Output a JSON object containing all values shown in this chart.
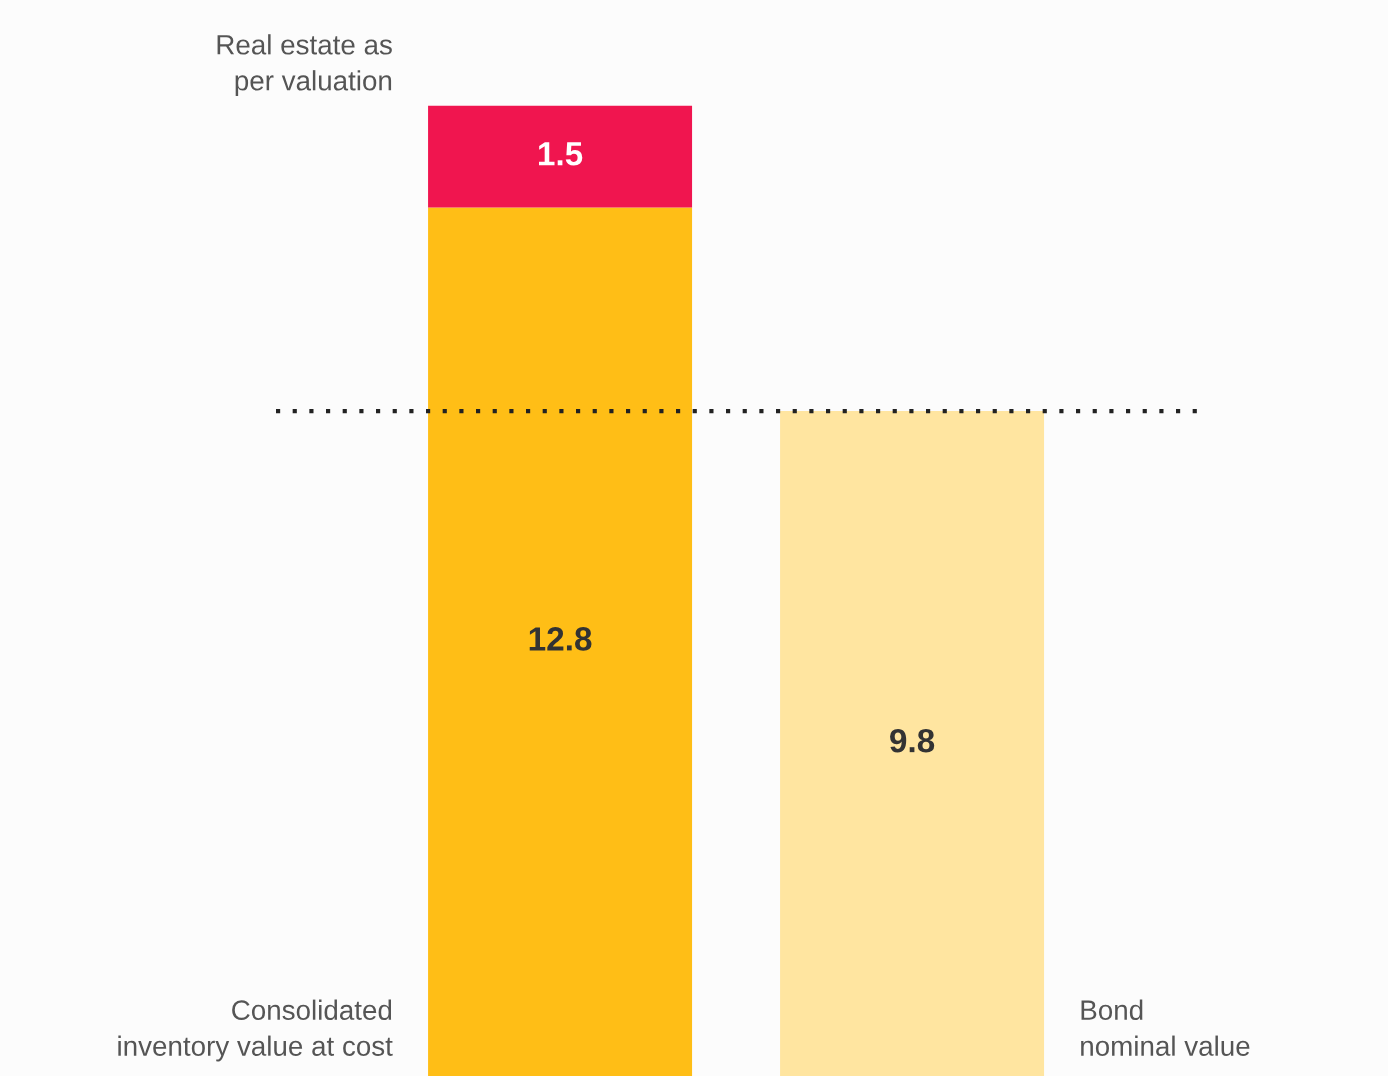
{
  "chart_data": {
    "type": "bar",
    "stacked": true,
    "categories": [
      null,
      null
    ],
    "series": [
      {
        "name": "Consolidated\ninventory value at cost",
        "color": "#ffbe16",
        "values": [
          12.8,
          null
        ]
      },
      {
        "name": "Real estate as\nper valuation",
        "color": "#f0154f",
        "values": [
          1.5,
          null
        ]
      },
      {
        "name": "Bond\nnominal value",
        "color": "#ffe5a0",
        "values": [
          null,
          9.8
        ]
      }
    ],
    "ref_lines": [
      {
        "axis": "y",
        "value": 9.8,
        "label": null,
        "color": "#222222",
        "line_style": "dotted"
      }
    ],
    "data_labels": true,
    "legend": false
  }
}
